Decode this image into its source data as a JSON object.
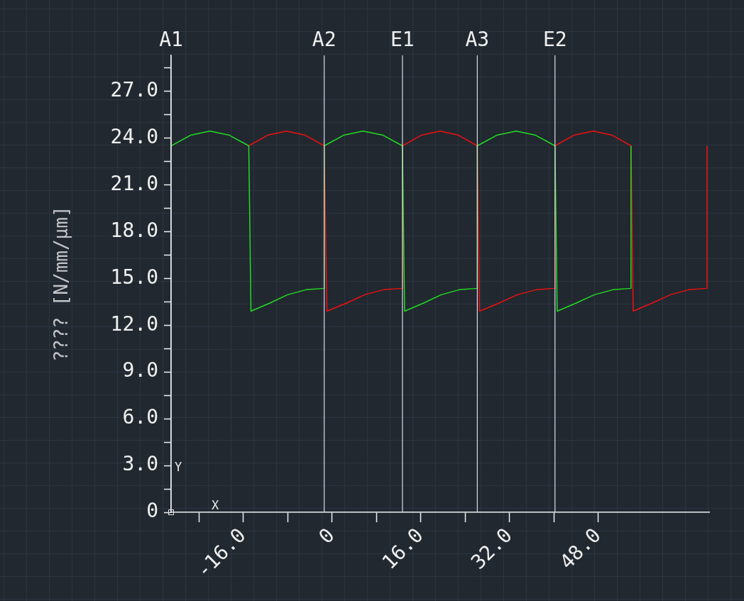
{
  "chart_data": {
    "type": "line",
    "ylabel": "???? [N/mm/μm]",
    "marker": "none",
    "line_style": "solid",
    "grid": false,
    "legend": false,
    "xlim": [
      -29,
      68
    ],
    "ylim": [
      0,
      29.3
    ],
    "xticks": [
      {
        "value": -24,
        "label": null
      },
      {
        "value": -16,
        "label": "-16.0"
      },
      {
        "value": -8,
        "label": null
      },
      0,
      {
        "value": 8,
        "label": null
      },
      {
        "value": 16,
        "label": "16.0"
      },
      {
        "value": 24,
        "label": null
      },
      {
        "value": 32,
        "label": "32.0"
      },
      {
        "value": 40,
        "label": null
      },
      {
        "value": 48,
        "label": "48.0"
      }
    ],
    "yticks": [
      0,
      {
        "value": 1.5,
        "label": null
      },
      {
        "value": 3,
        "label": "3.0"
      },
      {
        "value": 4.5,
        "label": null
      },
      {
        "value": 6,
        "label": "6.0"
      },
      {
        "value": 7.5,
        "label": null
      },
      {
        "value": 9,
        "label": "9.0"
      },
      {
        "value": 10.5,
        "label": null
      },
      {
        "value": 12,
        "label": "12.0"
      },
      {
        "value": 13.5,
        "label": null
      },
      {
        "value": 15,
        "label": "15.0"
      },
      {
        "value": 16.5,
        "label": null
      },
      {
        "value": 18,
        "label": "18.0"
      },
      {
        "value": 19.5,
        "label": null
      },
      {
        "value": 21,
        "label": "21.0"
      },
      {
        "value": 22.5,
        "label": null
      },
      {
        "value": 24,
        "label": "24.0"
      },
      {
        "value": 25.5,
        "label": null
      },
      {
        "value": 27,
        "label": "27.0"
      },
      {
        "value": 28.5,
        "label": null
      }
    ],
    "ref_lines": [
      {
        "axis": "x",
        "value": -29,
        "label": "A1",
        "color": "#e8e8f0"
      },
      {
        "axis": "x",
        "value": -1.4,
        "label": "A2",
        "color": "#dcdcf0"
      },
      {
        "axis": "x",
        "value": 12.7,
        "label": "E1",
        "color": "#dcdcf0"
      },
      {
        "axis": "x",
        "value": 26.2,
        "label": "A3",
        "color": "#dcdcf0"
      },
      {
        "axis": "x",
        "value": 40.2,
        "label": "E2",
        "color": "#dcdcf0"
      }
    ],
    "annotations": [
      "Y",
      "X"
    ],
    "series": [
      {
        "color": "#22dd22",
        "x": [
          -29,
          -25.5,
          -22,
          -18.5,
          -15,
          -14.6,
          -11.3,
          -8,
          -4.7,
          -1.4,
          -1.4,
          2.1,
          5.6,
          9.2,
          12.7,
          13.1,
          16.4,
          19.7,
          22.9,
          26.2,
          26.2,
          29.7,
          33.2,
          36.7,
          40.2,
          40.6,
          43.9,
          47.3,
          50.6,
          53.9,
          53.9
        ],
        "values": [
          23.5,
          24.18,
          24.44,
          24.18,
          23.5,
          12.9,
          13.4,
          13.95,
          14.27,
          14.36,
          23.5,
          24.18,
          24.44,
          24.18,
          23.5,
          12.9,
          13.4,
          13.95,
          14.27,
          14.36,
          23.5,
          24.18,
          24.44,
          24.18,
          23.5,
          12.9,
          13.4,
          13.95,
          14.27,
          14.36,
          23.5
        ]
      },
      {
        "color": "#ee1111",
        "x": [
          -15,
          -11.6,
          -8.2,
          -4.8,
          -1.4,
          -0.9,
          2.5,
          5.9,
          9.3,
          12.7,
          12.7,
          16.1,
          19.5,
          22.8,
          26.2,
          26.6,
          30,
          33.4,
          36.8,
          40.2,
          40.2,
          43.6,
          47.1,
          50.5,
          53.9,
          54.3,
          57.6,
          61,
          64.3,
          67.6,
          67.6
        ],
        "values": [
          23.5,
          24.18,
          24.44,
          24.18,
          23.5,
          12.9,
          13.4,
          13.95,
          14.27,
          14.36,
          23.5,
          24.18,
          24.44,
          24.18,
          23.5,
          12.9,
          13.4,
          13.95,
          14.27,
          14.36,
          23.5,
          24.18,
          24.44,
          24.18,
          23.5,
          12.9,
          13.4,
          13.95,
          14.27,
          14.36,
          23.5
        ]
      }
    ]
  }
}
